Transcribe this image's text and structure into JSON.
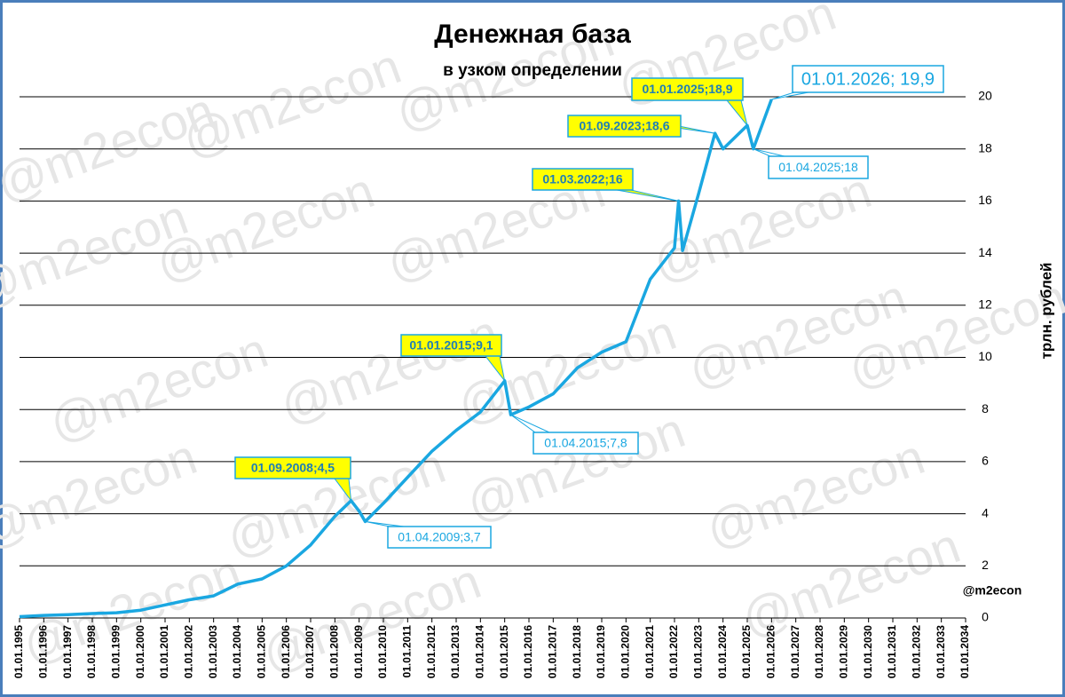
{
  "chart_data": {
    "type": "line",
    "title": "Денежная база",
    "subtitle": "в узком определении",
    "y_axis_label": "трлн. рублей",
    "watermark": "@m2econ",
    "x": [
      "01.01.1995",
      "01.01.1996",
      "01.01.1997",
      "01.01.1998",
      "01.01.1999",
      "01.01.2000",
      "01.01.2001",
      "01.01.2002",
      "01.01.2003",
      "01.01.2004",
      "01.01.2005",
      "01.01.2006",
      "01.01.2007",
      "01.01.2008",
      "01.09.2008",
      "01.01.2009",
      "01.04.2009",
      "01.01.2010",
      "01.01.2011",
      "01.01.2012",
      "01.01.2013",
      "01.01.2014",
      "01.01.2015",
      "01.04.2015",
      "01.01.2016",
      "01.01.2017",
      "01.01.2018",
      "01.01.2019",
      "01.01.2020",
      "01.01.2021",
      "01.01.2022",
      "01.03.2022",
      "01.05.2022",
      "01.01.2023",
      "01.09.2023",
      "01.01.2024",
      "01.01.2025",
      "01.04.2025",
      "01.01.2026"
    ],
    "series": [
      {
        "name": "Денежная база",
        "color": "#1aa7e1",
        "values": [
          0.05,
          0.1,
          0.13,
          0.17,
          0.2,
          0.3,
          0.5,
          0.7,
          0.85,
          1.3,
          1.5,
          2.0,
          2.8,
          3.9,
          4.5,
          4.1,
          3.7,
          4.4,
          5.4,
          6.4,
          7.2,
          7.9,
          9.1,
          7.8,
          8.1,
          8.6,
          9.6,
          10.2,
          10.6,
          13.0,
          14.2,
          16,
          14.1,
          16.3,
          18.6,
          18.0,
          18.9,
          18,
          19.9
        ]
      }
    ],
    "xlim": [
      "01.01.1995",
      "01.01.2034"
    ],
    "xticks": [
      "01.01.1995",
      "01.01.1996",
      "01.01.1997",
      "01.01.1998",
      "01.01.1999",
      "01.01.2000",
      "01.01.2001",
      "01.01.2002",
      "01.01.2003",
      "01.01.2004",
      "01.01.2005",
      "01.01.2006",
      "01.01.2007",
      "01.01.2008",
      "01.01.2009",
      "01.01.2010",
      "01.01.2011",
      "01.01.2012",
      "01.01.2013",
      "01.01.2014",
      "01.01.2015",
      "01.01.2016",
      "01.01.2017",
      "01.01.2018",
      "01.01.2019",
      "01.01.2020",
      "01.01.2021",
      "01.01.2022",
      "01.01.2023",
      "01.01.2024",
      "01.01.2025",
      "01.01.2026",
      "01.01.2027",
      "01.01.2028",
      "01.01.2029",
      "01.01.2030",
      "01.01.2031",
      "01.01.2032",
      "01.01.2033",
      "01.01.2034"
    ],
    "ylim": [
      0,
      20
    ],
    "yticks": [
      0,
      2,
      4,
      6,
      8,
      10,
      12,
      14,
      16,
      18,
      20
    ],
    "grid": true,
    "annotations": [
      {
        "label": "01.09.2008;4,5",
        "style": "yellow"
      },
      {
        "label": "01.04.2009;3,7",
        "style": "blue"
      },
      {
        "label": "01.01.2015;9,1",
        "style": "yellow"
      },
      {
        "label": "01.04.2015;7,8",
        "style": "blue"
      },
      {
        "label": "01.03.2022;16",
        "style": "yellow"
      },
      {
        "label": "01.09.2023;18,6",
        "style": "yellow"
      },
      {
        "label": "01.01.2025;18,9",
        "style": "yellow"
      },
      {
        "label": "01.04.2025;18",
        "style": "blue"
      },
      {
        "label": "01.01.2026; 19,9",
        "style": "blue"
      }
    ]
  }
}
